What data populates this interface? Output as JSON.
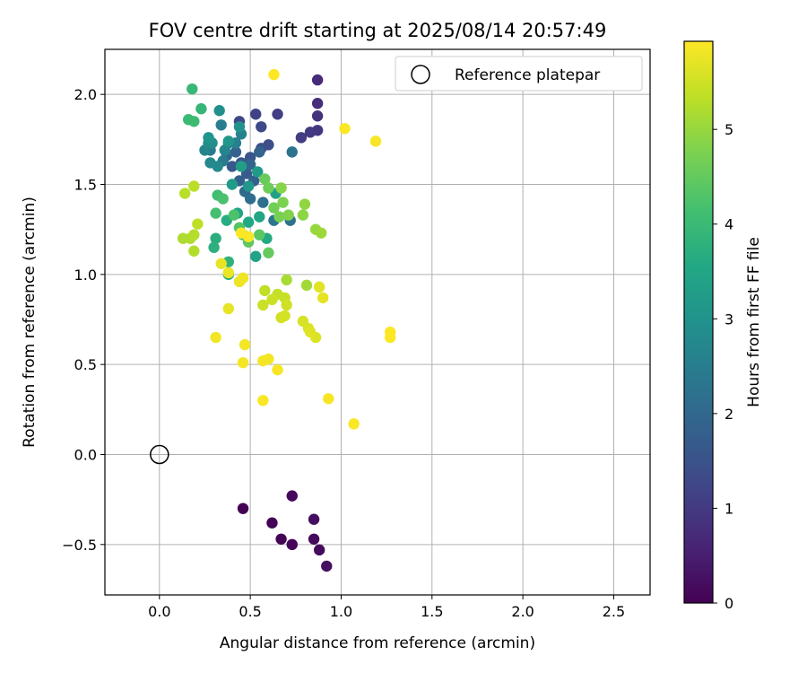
{
  "chart_data": {
    "type": "scatter",
    "title": "FOV centre drift starting at 2025/08/14 20:57:49",
    "xlabel": "Angular distance from reference (arcmin)",
    "ylabel": "Rotation from reference (arcmin)",
    "xlim": [
      -0.3,
      2.7
    ],
    "ylim": [
      -0.78,
      2.25
    ],
    "xticks": [
      0.0,
      0.5,
      1.0,
      1.5,
      2.0,
      2.5
    ],
    "xtick_labels": [
      "0.0",
      "0.5",
      "1.0",
      "1.5",
      "2.0",
      "2.5"
    ],
    "yticks": [
      -0.5,
      0.0,
      0.5,
      1.0,
      1.5,
      2.0
    ],
    "ytick_labels": [
      "−0.5",
      "0.0",
      "0.5",
      "1.0",
      "1.5",
      "2.0"
    ],
    "grid": true,
    "legend": {
      "placement": "top-right",
      "entries": [
        "Reference platepar"
      ]
    },
    "reference_point": {
      "x": 0.0,
      "y": 0.0,
      "marker": "hollow-circle"
    },
    "colorbar": {
      "label": "Hours from first FF file",
      "colormap": "viridis",
      "range": [
        0,
        5.93
      ],
      "ticks": [
        0,
        1,
        2,
        3,
        4,
        5
      ],
      "tick_labels": [
        "0",
        "1",
        "2",
        "3",
        "4",
        "5"
      ]
    },
    "points": [
      [
        0.46,
        -0.3,
        0.0
      ],
      [
        0.62,
        -0.38,
        0.03
      ],
      [
        0.67,
        -0.47,
        0.06
      ],
      [
        0.73,
        -0.5,
        0.09
      ],
      [
        0.73,
        -0.23,
        0.12
      ],
      [
        0.85,
        -0.47,
        0.15
      ],
      [
        0.88,
        -0.53,
        0.18
      ],
      [
        0.85,
        -0.36,
        0.21
      ],
      [
        0.92,
        -0.62,
        0.24
      ],
      [
        0.87,
        2.08,
        0.7
      ],
      [
        0.87,
        1.95,
        0.78
      ],
      [
        0.87,
        1.88,
        0.86
      ],
      [
        0.87,
        1.8,
        0.94
      ],
      [
        0.83,
        1.79,
        1.0
      ],
      [
        0.78,
        1.76,
        1.05
      ],
      [
        0.65,
        1.89,
        1.1
      ],
      [
        0.53,
        1.89,
        1.15
      ],
      [
        0.44,
        1.85,
        1.25
      ],
      [
        0.56,
        1.82,
        1.3
      ],
      [
        0.6,
        1.72,
        1.4
      ],
      [
        0.56,
        1.7,
        1.45
      ],
      [
        0.5,
        1.65,
        1.55
      ],
      [
        0.45,
        1.62,
        1.6
      ],
      [
        0.4,
        1.6,
        1.65
      ],
      [
        0.48,
        1.56,
        1.7
      ],
      [
        0.44,
        1.52,
        1.75
      ],
      [
        0.52,
        1.52,
        1.8
      ],
      [
        0.42,
        1.68,
        1.85
      ],
      [
        0.55,
        1.68,
        1.9
      ],
      [
        0.5,
        1.61,
        1.95
      ],
      [
        0.37,
        1.66,
        2.0
      ],
      [
        0.47,
        1.46,
        2.05
      ],
      [
        0.5,
        1.42,
        2.1
      ],
      [
        0.57,
        1.4,
        2.15
      ],
      [
        0.72,
        1.3,
        2.2
      ],
      [
        0.73,
        1.68,
        2.25
      ],
      [
        0.63,
        1.3,
        2.3
      ],
      [
        0.38,
        1.73,
        2.35
      ],
      [
        0.28,
        1.69,
        2.4
      ],
      [
        0.35,
        1.63,
        2.45
      ],
      [
        0.34,
        1.83,
        2.5
      ],
      [
        0.42,
        1.73,
        2.55
      ],
      [
        0.45,
        1.78,
        2.6
      ],
      [
        0.25,
        1.69,
        2.65
      ],
      [
        0.36,
        1.69,
        2.7
      ],
      [
        0.28,
        1.62,
        2.75
      ],
      [
        0.32,
        1.6,
        2.8
      ],
      [
        0.27,
        1.73,
        2.85
      ],
      [
        0.29,
        1.73,
        2.9
      ],
      [
        0.33,
        1.91,
        2.95
      ],
      [
        0.44,
        1.82,
        3.0
      ],
      [
        0.27,
        1.76,
        3.05
      ],
      [
        0.38,
        1.74,
        3.1
      ],
      [
        0.49,
        1.49,
        3.15
      ],
      [
        0.54,
        1.57,
        3.2
      ],
      [
        0.4,
        1.5,
        3.25
      ],
      [
        0.45,
        1.6,
        3.3
      ],
      [
        0.64,
        1.45,
        3.35
      ],
      [
        0.53,
        1.1,
        3.4
      ],
      [
        0.43,
        1.34,
        3.45
      ],
      [
        0.55,
        1.32,
        3.5
      ],
      [
        0.49,
        1.29,
        3.55
      ],
      [
        0.59,
        1.2,
        3.6
      ],
      [
        0.37,
        1.3,
        3.65
      ],
      [
        0.31,
        1.2,
        3.7
      ],
      [
        0.3,
        1.15,
        3.75
      ],
      [
        0.38,
        1.07,
        3.8
      ],
      [
        0.38,
        1.0,
        3.85
      ],
      [
        0.23,
        1.92,
        3.9
      ],
      [
        0.18,
        2.03,
        3.95
      ],
      [
        0.16,
        1.86,
        4.0
      ],
      [
        0.19,
        1.85,
        4.05
      ],
      [
        0.32,
        1.44,
        4.1
      ],
      [
        0.31,
        1.34,
        4.15
      ],
      [
        0.35,
        1.42,
        4.2
      ],
      [
        0.41,
        1.33,
        4.25
      ],
      [
        0.44,
        1.26,
        4.3
      ],
      [
        0.46,
        1.22,
        4.35
      ],
      [
        0.55,
        1.22,
        4.4
      ],
      [
        0.49,
        1.18,
        4.45
      ],
      [
        0.6,
        1.12,
        4.5
      ],
      [
        0.58,
        1.53,
        4.55
      ],
      [
        0.6,
        1.48,
        4.6
      ],
      [
        0.63,
        1.37,
        4.65
      ],
      [
        0.66,
        1.32,
        4.7
      ],
      [
        0.68,
        1.4,
        4.75
      ],
      [
        0.71,
        1.33,
        4.8
      ],
      [
        0.67,
        1.48,
        4.85
      ],
      [
        0.79,
        1.33,
        4.9
      ],
      [
        0.8,
        1.39,
        4.95
      ],
      [
        0.86,
        1.25,
        5.0
      ],
      [
        0.89,
        1.23,
        5.05
      ],
      [
        0.81,
        0.94,
        5.1
      ],
      [
        0.7,
        0.97,
        5.15
      ],
      [
        0.13,
        1.2,
        5.2
      ],
      [
        0.17,
        1.2,
        5.22
      ],
      [
        0.19,
        1.13,
        5.25
      ],
      [
        0.19,
        1.22,
        5.27
      ],
      [
        0.14,
        1.45,
        5.3
      ],
      [
        0.19,
        1.49,
        5.32
      ],
      [
        0.21,
        1.28,
        5.35
      ],
      [
        0.58,
        0.91,
        5.37
      ],
      [
        0.65,
        0.89,
        5.4
      ],
      [
        0.69,
        0.87,
        5.42
      ],
      [
        0.57,
        0.83,
        5.45
      ],
      [
        0.62,
        0.86,
        5.47
      ],
      [
        0.7,
        0.83,
        5.5
      ],
      [
        0.67,
        0.76,
        5.52
      ],
      [
        0.69,
        0.77,
        5.55
      ],
      [
        0.79,
        0.74,
        5.57
      ],
      [
        0.82,
        0.7,
        5.6
      ],
      [
        0.86,
        0.65,
        5.62
      ],
      [
        0.83,
        0.68,
        5.65
      ],
      [
        0.88,
        0.93,
        5.67
      ],
      [
        0.9,
        0.87,
        5.7
      ],
      [
        0.38,
        0.81,
        5.72
      ],
      [
        0.34,
        1.06,
        5.74
      ],
      [
        0.38,
        1.01,
        5.76
      ],
      [
        0.44,
        0.96,
        5.78
      ],
      [
        0.46,
        0.98,
        5.8
      ],
      [
        0.31,
        0.65,
        5.82
      ],
      [
        0.47,
        0.61,
        5.83
      ],
      [
        0.46,
        0.51,
        5.84
      ],
      [
        0.57,
        0.52,
        5.85
      ],
      [
        0.6,
        0.53,
        5.86
      ],
      [
        0.65,
        0.47,
        5.87
      ],
      [
        0.93,
        0.31,
        5.88
      ],
      [
        0.57,
        0.3,
        5.89
      ],
      [
        1.07,
        0.17,
        5.9
      ],
      [
        1.27,
        0.68,
        5.91
      ],
      [
        1.27,
        0.65,
        5.92
      ],
      [
        1.02,
        1.81,
        5.9
      ],
      [
        1.19,
        1.74,
        5.88
      ],
      [
        0.63,
        2.11,
        5.93
      ],
      [
        0.45,
        1.23,
        5.92
      ],
      [
        0.49,
        1.21,
        5.91
      ]
    ]
  }
}
